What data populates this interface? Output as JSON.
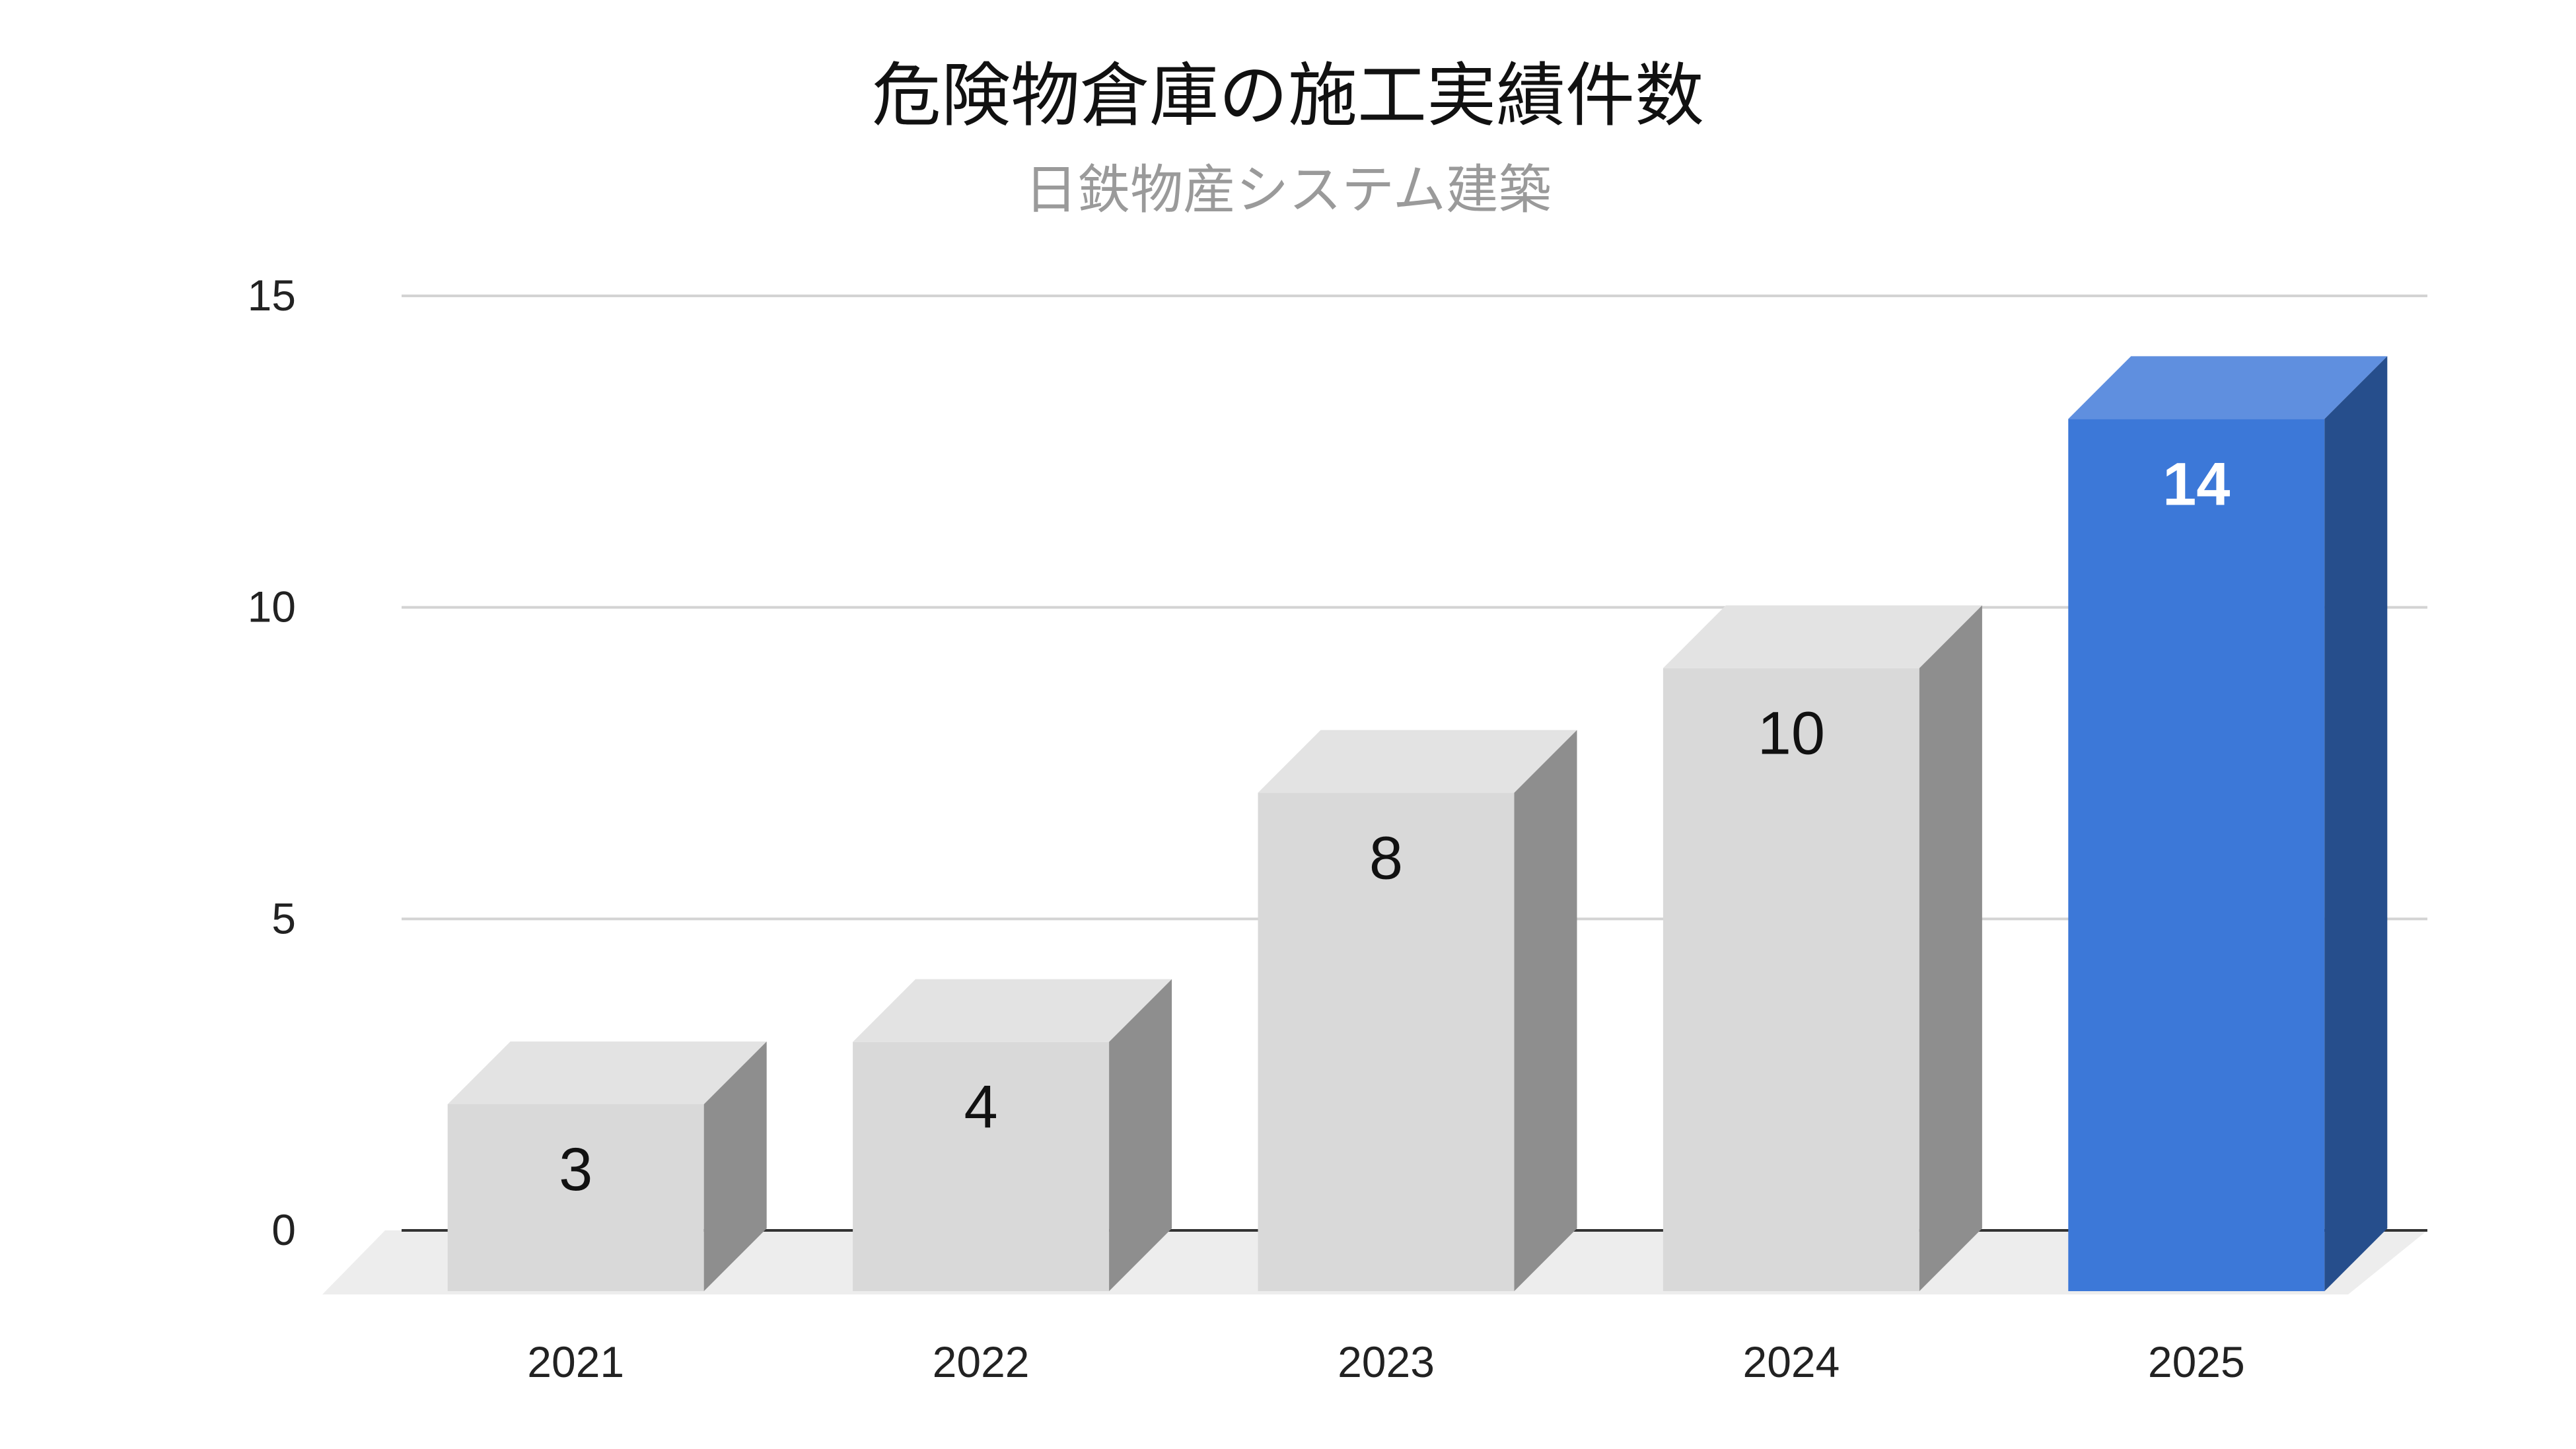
{
  "chart_data": {
    "type": "bar",
    "style": "3d",
    "title": "危険物倉庫の施工実績件数",
    "subtitle": "日鉄物産システム建築",
    "categories": [
      "2021",
      "2022",
      "2023",
      "2024",
      "2025"
    ],
    "values": [
      3,
      4,
      8,
      10,
      14
    ],
    "ylim": [
      0,
      15
    ],
    "yticks": [
      0,
      5,
      10,
      15
    ],
    "grid": true,
    "legend": "none",
    "colors": {
      "default_front": "#d9d9d9",
      "default_top": "#e3e3e3",
      "default_side": "#8e8e8e",
      "highlight_front": "#3c78d8",
      "highlight_top": "#5f8fdf",
      "highlight_side": "#264e8c",
      "gridline": "#d3d3d3",
      "baseline": "#333333",
      "floor": "#ededed",
      "label_dark": "#111111",
      "label_light": "#ffffff"
    },
    "highlight_index": 4
  }
}
